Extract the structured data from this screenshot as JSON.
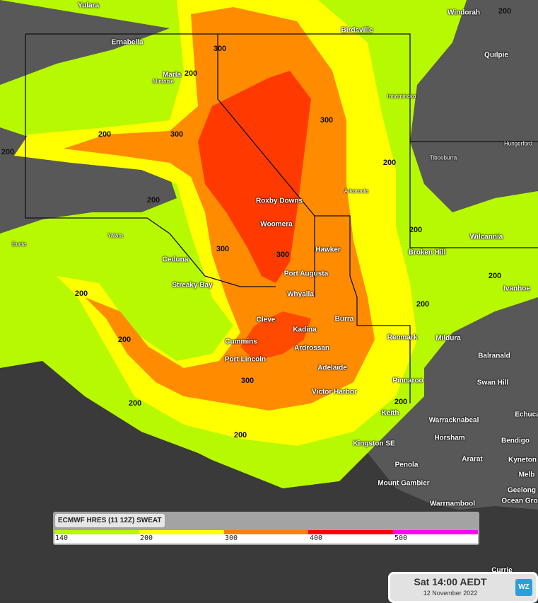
{
  "legend": {
    "title": "ECMWF HRES (11 12Z) SWEAT",
    "ticks": [
      "140",
      "200",
      "300",
      "400",
      "500"
    ],
    "colors": [
      "#b7f900",
      "#ffff00",
      "#ff8000",
      "#ff0000",
      "#ff00ff"
    ]
  },
  "timestamp": {
    "time": "Sat 14:00 AEDT",
    "date": "12 November 2022"
  },
  "logo": "WZ",
  "colors": {
    "sea": "#3a3a3a",
    "land": "#585858",
    "low": "#b7f900",
    "mid": "#ffff00",
    "high": "#ff8c00",
    "peak": "#ff2a00"
  },
  "places": [
    "Yulara",
    "Windorah",
    "Birdsville",
    "Ernabella",
    "Marla",
    "Mintabie",
    "Quilpie",
    "Innamincka",
    "Hungerford",
    "Tibooburra",
    "Arkaroola",
    "Roxby Downs",
    "Woomera",
    "Yalata",
    "Eucla",
    "Hawker",
    "Wilcannia",
    "Broken Hill",
    "Ceduna",
    "Port Augusta",
    "Streaky Bay",
    "Ivanhoe",
    "Whyalla",
    "Cleve",
    "Burra",
    "Kadina",
    "Renmark",
    "Mildura",
    "Balranald",
    "Cummins",
    "Ardrossan",
    "Port Lincoln",
    "Adelaide",
    "Pinnaroo",
    "Swan Hill",
    "Victor Harbor",
    "Keith",
    "Echuca",
    "Warracknabeal",
    "Horsham",
    "Bendigo",
    "Kingston SE",
    "Ararat",
    "Kyneton",
    "Penola",
    "Mount Gambier",
    "Melb",
    "Geelong",
    "Warrnambool",
    "Ocean Gro",
    "Currie"
  ],
  "contour_labels": [
    "300",
    "200",
    "200",
    "300",
    "200",
    "200",
    "300",
    "300",
    "300",
    "200",
    "200",
    "200",
    "300",
    "200",
    "200",
    "200",
    "200",
    "200",
    "200",
    "200"
  ]
}
